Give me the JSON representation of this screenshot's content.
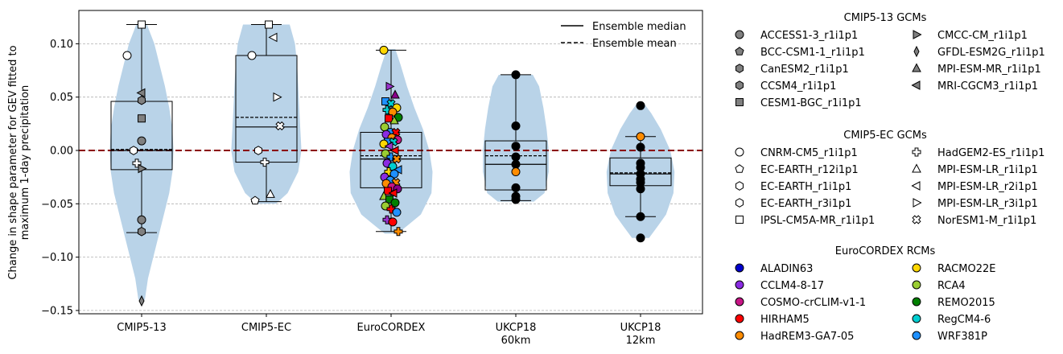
{
  "chart_data": {
    "type": "violin-box",
    "ylabel_line1": "Change in shape parameter for GEV fitted to",
    "ylabel_line2": "maximum 1-day precipitation",
    "ylim": [
      -0.155,
      0.13
    ],
    "yticks": [
      -0.15,
      -0.1,
      -0.05,
      0.0,
      0.05,
      0.1
    ],
    "ytick_labels": [
      "−0.15",
      "−0.10",
      "−0.05",
      "0.00",
      "0.05",
      "0.10"
    ],
    "grid": "horizontal dashed",
    "reference_line": {
      "y": 0.0,
      "color": "#8b0000",
      "style": "dashed"
    },
    "legend_top": {
      "placement": "top-right",
      "entries": [
        {
          "label": "Ensemble median",
          "style": "solid"
        },
        {
          "label": "Ensemble mean",
          "style": "dashed"
        }
      ]
    },
    "groups": [
      {
        "label": "CMIP5-13",
        "sublabel": "",
        "whiskers": [
          -0.077,
          0.118
        ],
        "box": [
          -0.018,
          0.046
        ],
        "median": 0.0,
        "mean": 0.001,
        "violin": [
          [
            -0.14,
            0.003
          ],
          [
            -0.12,
            0.006
          ],
          [
            -0.1,
            0.011
          ],
          [
            -0.08,
            0.016
          ],
          [
            -0.06,
            0.021
          ],
          [
            -0.04,
            0.026
          ],
          [
            -0.02,
            0.029
          ],
          [
            0.0,
            0.03
          ],
          [
            0.02,
            0.029
          ],
          [
            0.04,
            0.026
          ],
          [
            0.06,
            0.022
          ],
          [
            0.08,
            0.017
          ],
          [
            0.1,
            0.012
          ],
          [
            0.118,
            0.005
          ]
        ],
        "points": [
          {
            "y": 0.118,
            "marker": "square",
            "color": "#ffffff"
          },
          {
            "y": 0.089,
            "marker": "circle",
            "color": "#ffffff"
          },
          {
            "y": 0.054,
            "marker": "left-triangle",
            "color": "#808080"
          },
          {
            "y": 0.047,
            "marker": "hexagon",
            "color": "#808080"
          },
          {
            "y": 0.03,
            "marker": "square",
            "color": "#808080"
          },
          {
            "y": 0.009,
            "marker": "circle",
            "color": "#808080"
          },
          {
            "y": 0.0,
            "marker": "hexagon",
            "color": "#ffffff"
          },
          {
            "y": -0.012,
            "marker": "plus",
            "color": "#ffffff"
          },
          {
            "y": -0.017,
            "marker": "right-triangle",
            "color": "#808080"
          },
          {
            "y": -0.065,
            "marker": "circle",
            "color": "#808080"
          },
          {
            "y": -0.076,
            "marker": "hexagon",
            "color": "#808080"
          },
          {
            "y": -0.141,
            "marker": "diamond",
            "color": "#808080"
          }
        ]
      },
      {
        "label": "CMIP5-EC",
        "sublabel": "",
        "whiskers": [
          -0.048,
          0.118
        ],
        "box": [
          -0.011,
          0.089
        ],
        "median": 0.022,
        "mean": 0.031,
        "violin": [
          [
            -0.05,
            0.009
          ],
          [
            -0.04,
            0.02
          ],
          [
            -0.02,
            0.03
          ],
          [
            0.0,
            0.033
          ],
          [
            0.02,
            0.032
          ],
          [
            0.04,
            0.031
          ],
          [
            0.06,
            0.03
          ],
          [
            0.08,
            0.029
          ],
          [
            0.1,
            0.027
          ],
          [
            0.118,
            0.022
          ]
        ],
        "points": [
          {
            "y": 0.118,
            "marker": "square",
            "color": "#ffffff"
          },
          {
            "y": 0.106,
            "marker": "left-triangle",
            "color": "#ffffff"
          },
          {
            "y": 0.089,
            "marker": "circle",
            "color": "#ffffff"
          },
          {
            "y": 0.05,
            "marker": "right-triangle",
            "color": "#ffffff"
          },
          {
            "y": 0.023,
            "marker": "cross",
            "color": "#ffffff"
          },
          {
            "y": 0.0,
            "marker": "hexagon",
            "color": "#ffffff"
          },
          {
            "y": -0.011,
            "marker": "plus",
            "color": "#ffffff"
          },
          {
            "y": -0.041,
            "marker": "triangle",
            "color": "#ffffff"
          },
          {
            "y": -0.047,
            "marker": "pentagon",
            "color": "#ffffff"
          }
        ]
      },
      {
        "label": "EuroCORDEX",
        "sublabel": "",
        "whiskers": [
          -0.076,
          0.094
        ],
        "box": [
          -0.035,
          0.017
        ],
        "median": -0.008,
        "mean": -0.005,
        "violin": [
          [
            -0.078,
            0.006
          ],
          [
            -0.07,
            0.016
          ],
          [
            -0.06,
            0.028
          ],
          [
            -0.04,
            0.038
          ],
          [
            -0.02,
            0.039
          ],
          [
            0.0,
            0.036
          ],
          [
            0.02,
            0.03
          ],
          [
            0.04,
            0.022
          ],
          [
            0.06,
            0.015
          ],
          [
            0.08,
            0.009
          ],
          [
            0.095,
            0.004
          ]
        ],
        "points": [
          {
            "y": 0.094,
            "marker": "circle",
            "color": "#ffd700"
          },
          {
            "y": 0.06,
            "marker": "right-triangle",
            "color": "#9932cc"
          },
          {
            "y": 0.052,
            "marker": "triangle",
            "color": "#8b008b"
          },
          {
            "y": 0.046,
            "marker": "square",
            "color": "#1e90ff"
          },
          {
            "y": 0.044,
            "marker": "cross",
            "color": "#00ced1"
          },
          {
            "y": 0.04,
            "marker": "circle",
            "color": "#ffd700"
          },
          {
            "y": 0.038,
            "marker": "plus",
            "color": "#00ced1"
          },
          {
            "y": 0.036,
            "marker": "circle",
            "color": "#ff8c00"
          },
          {
            "y": 0.031,
            "marker": "circle",
            "color": "#008000"
          },
          {
            "y": 0.03,
            "marker": "square",
            "color": "#ff0000"
          },
          {
            "y": 0.028,
            "marker": "triangle",
            "color": "#9acd32"
          },
          {
            "y": 0.022,
            "marker": "circle",
            "color": "#9acd32"
          },
          {
            "y": 0.017,
            "marker": "circle",
            "color": "#1e90ff"
          },
          {
            "y": 0.017,
            "marker": "cross",
            "color": "#ff0000"
          },
          {
            "y": 0.015,
            "marker": "circle",
            "color": "#8a2be2"
          },
          {
            "y": 0.012,
            "marker": "circle",
            "color": "#ff8c00"
          },
          {
            "y": 0.01,
            "marker": "circle",
            "color": "#c71585"
          },
          {
            "y": 0.008,
            "marker": "square",
            "color": "#1e90ff"
          },
          {
            "y": 0.008,
            "marker": "cross",
            "color": "#00ced1"
          },
          {
            "y": 0.006,
            "marker": "circle",
            "color": "#ffd700"
          },
          {
            "y": 0.004,
            "marker": "left-triangle",
            "color": "#9932cc"
          },
          {
            "y": 0.0,
            "marker": "left-triangle",
            "color": "#ff0000"
          },
          {
            "y": -0.003,
            "marker": "circle",
            "color": "#9acd32"
          },
          {
            "y": -0.006,
            "marker": "plus",
            "color": "#1e90ff"
          },
          {
            "y": -0.008,
            "marker": "cross",
            "color": "#ff8c00"
          },
          {
            "y": -0.012,
            "marker": "circle",
            "color": "#8a2be2"
          },
          {
            "y": -0.015,
            "marker": "circle",
            "color": "#00ced1"
          },
          {
            "y": -0.018,
            "marker": "left-triangle",
            "color": "#1e90ff"
          },
          {
            "y": -0.02,
            "marker": "plus",
            "color": "#ffd700"
          },
          {
            "y": -0.022,
            "marker": "circle",
            "color": "#1e90ff"
          },
          {
            "y": -0.025,
            "marker": "circle",
            "color": "#8a2be2"
          },
          {
            "y": -0.028,
            "marker": "circle",
            "color": "#1e90ff"
          },
          {
            "y": -0.03,
            "marker": "cross",
            "color": "#ff8c00"
          },
          {
            "y": -0.031,
            "marker": "circle",
            "color": "#ff8c00"
          },
          {
            "y": -0.034,
            "marker": "circle",
            "color": "#c71585"
          },
          {
            "y": -0.036,
            "marker": "circle",
            "color": "#8b008b"
          },
          {
            "y": -0.038,
            "marker": "square",
            "color": "#ff0000"
          },
          {
            "y": -0.04,
            "marker": "left-triangle",
            "color": "#ff0000"
          },
          {
            "y": -0.043,
            "marker": "triangle",
            "color": "#9acd32"
          },
          {
            "y": -0.046,
            "marker": "square",
            "color": "#008000"
          },
          {
            "y": -0.049,
            "marker": "circle",
            "color": "#008000"
          },
          {
            "y": -0.052,
            "marker": "circle",
            "color": "#9acd32"
          },
          {
            "y": -0.055,
            "marker": "plus",
            "color": "#ff0000"
          },
          {
            "y": -0.058,
            "marker": "circle",
            "color": "#1e90ff"
          },
          {
            "y": -0.065,
            "marker": "plus",
            "color": "#9932cc"
          },
          {
            "y": -0.067,
            "marker": "circle",
            "color": "#ff0000"
          },
          {
            "y": -0.076,
            "marker": "plus",
            "color": "#ff8c00"
          }
        ]
      },
      {
        "label": "UKCP18",
        "sublabel": "60km",
        "whiskers": [
          -0.047,
          0.071
        ],
        "box": [
          -0.037,
          0.009
        ],
        "median": -0.013,
        "mean": -0.005,
        "violin": [
          [
            -0.048,
            0.017
          ],
          [
            -0.04,
            0.027
          ],
          [
            -0.02,
            0.031
          ],
          [
            0.0,
            0.031
          ],
          [
            0.02,
            0.029
          ],
          [
            0.04,
            0.026
          ],
          [
            0.06,
            0.022
          ],
          [
            0.071,
            0.016
          ]
        ],
        "points": [
          {
            "y": 0.071,
            "marker": "circle",
            "color": "#000000"
          },
          {
            "y": 0.023,
            "marker": "circle",
            "color": "#000000"
          },
          {
            "y": 0.004,
            "marker": "circle",
            "color": "#000000"
          },
          {
            "y": -0.006,
            "marker": "circle",
            "color": "#000000"
          },
          {
            "y": -0.013,
            "marker": "circle",
            "color": "#000000"
          },
          {
            "y": -0.02,
            "marker": "circle",
            "color": "#ff8c00"
          },
          {
            "y": -0.035,
            "marker": "circle",
            "color": "#000000"
          },
          {
            "y": -0.043,
            "marker": "circle",
            "color": "#000000"
          },
          {
            "y": -0.046,
            "marker": "circle",
            "color": "#000000"
          }
        ]
      },
      {
        "label": "UKCP18",
        "sublabel": "12km",
        "whiskers": [
          -0.062,
          0.013
        ],
        "box": [
          -0.033,
          -0.007
        ],
        "median": -0.022,
        "mean": -0.021,
        "violin": [
          [
            -0.082,
            0.008
          ],
          [
            -0.07,
            0.017
          ],
          [
            -0.06,
            0.024
          ],
          [
            -0.04,
            0.031
          ],
          [
            -0.02,
            0.032
          ],
          [
            0.0,
            0.028
          ],
          [
            0.02,
            0.019
          ],
          [
            0.035,
            0.01
          ],
          [
            0.043,
            0.004
          ]
        ],
        "points": [
          {
            "y": 0.042,
            "marker": "circle",
            "color": "#000000"
          },
          {
            "y": 0.013,
            "marker": "circle",
            "color": "#ff8c00"
          },
          {
            "y": 0.003,
            "marker": "circle",
            "color": "#000000"
          },
          {
            "y": -0.012,
            "marker": "circle",
            "color": "#000000"
          },
          {
            "y": -0.016,
            "marker": "circle",
            "color": "#000000"
          },
          {
            "y": -0.022,
            "marker": "circle",
            "color": "#000000"
          },
          {
            "y": -0.027,
            "marker": "circle",
            "color": "#000000"
          },
          {
            "y": -0.03,
            "marker": "circle",
            "color": "#000000"
          },
          {
            "y": -0.036,
            "marker": "circle",
            "color": "#000000"
          },
          {
            "y": -0.062,
            "marker": "circle",
            "color": "#000000"
          },
          {
            "y": -0.082,
            "marker": "circle",
            "color": "#000000"
          }
        ]
      }
    ],
    "legend_right": [
      {
        "title": "CMIP5-13 GCMs",
        "entries": [
          {
            "label": "ACCESS1-3_r1i1p1",
            "marker": "circle",
            "color": "#808080"
          },
          {
            "label": "BCC-CSM1-1_r1i1p1",
            "marker": "pentagon",
            "color": "#808080"
          },
          {
            "label": "CanESM2_r1i1p1",
            "marker": "hexagon",
            "color": "#808080"
          },
          {
            "label": "CCSM4_r1i1p1",
            "marker": "hexagon",
            "color": "#808080"
          },
          {
            "label": "CESM1-BGC_r1i1p1",
            "marker": "square",
            "color": "#808080"
          },
          {
            "label": "CMCC-CM_r1i1p1",
            "marker": "right-triangle",
            "color": "#808080"
          },
          {
            "label": "GFDL-ESM2G_r1i1p1",
            "marker": "diamond",
            "color": "#808080"
          },
          {
            "label": "MPI-ESM-MR_r1i1p1",
            "marker": "triangle",
            "color": "#808080"
          },
          {
            "label": "MRI-CGCM3_r1i1p1",
            "marker": "left-triangle",
            "color": "#808080"
          }
        ]
      },
      {
        "title": "CMIP5-EC GCMs",
        "entries": [
          {
            "label": "CNRM-CM5_r1i1p1",
            "marker": "circle",
            "color": "#ffffff"
          },
          {
            "label": "EC-EARTH_r12i1p1",
            "marker": "pentagon",
            "color": "#ffffff"
          },
          {
            "label": "EC-EARTH_r1i1p1",
            "marker": "hexagon",
            "color": "#ffffff"
          },
          {
            "label": "EC-EARTH_r3i1p1",
            "marker": "hexagon",
            "color": "#ffffff"
          },
          {
            "label": "IPSL-CM5A-MR_r1i1p1",
            "marker": "square",
            "color": "#ffffff"
          },
          {
            "label": "HadGEM2-ES_r1i1p1",
            "marker": "plus",
            "color": "#ffffff"
          },
          {
            "label": "MPI-ESM-LR_r1i1p1",
            "marker": "triangle",
            "color": "#ffffff"
          },
          {
            "label": "MPI-ESM-LR_r2i1p1",
            "marker": "left-triangle",
            "color": "#ffffff"
          },
          {
            "label": "MPI-ESM-LR_r3i1p1",
            "marker": "right-triangle",
            "color": "#ffffff"
          },
          {
            "label": "NorESM1-M_r1i1p1",
            "marker": "cross",
            "color": "#ffffff"
          }
        ]
      },
      {
        "title": "EuroCORDEX RCMs",
        "entries": [
          {
            "label": "ALADIN63",
            "marker": "circle",
            "color": "#0000cd"
          },
          {
            "label": "CCLM4-8-17",
            "marker": "circle",
            "color": "#8a2be2"
          },
          {
            "label": "COSMO-crCLIM-v1-1",
            "marker": "circle",
            "color": "#c71585"
          },
          {
            "label": "HIRHAM5",
            "marker": "circle",
            "color": "#ff0000"
          },
          {
            "label": "HadREM3-GA7-05",
            "marker": "circle",
            "color": "#ff8c00"
          },
          {
            "label": "RACMO22E",
            "marker": "circle",
            "color": "#ffd700"
          },
          {
            "label": "RCA4",
            "marker": "circle",
            "color": "#9acd32"
          },
          {
            "label": "REMO2015",
            "marker": "circle",
            "color": "#008000"
          },
          {
            "label": "RegCM4-6",
            "marker": "circle",
            "color": "#00ced1"
          },
          {
            "label": "WRF381P",
            "marker": "circle",
            "color": "#1e90ff"
          }
        ]
      }
    ],
    "colors": {
      "violin": "#b9d3e8",
      "zero_line": "#8b0000",
      "grid": "#b0b0b0"
    }
  }
}
